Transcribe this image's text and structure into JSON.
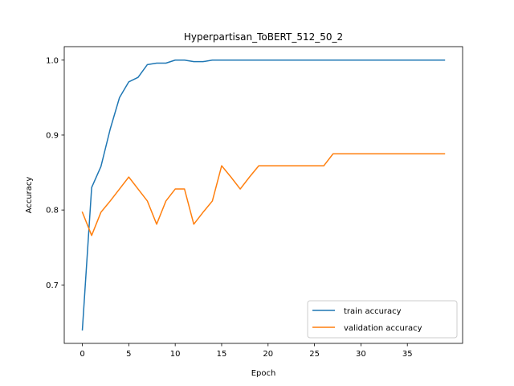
{
  "chart_data": {
    "type": "line",
    "title": "Hyperpartisan_ToBERT_512_50_2",
    "xlabel": "Epoch",
    "ylabel": "Accuracy",
    "xlim": [
      -1.95,
      40.95
    ],
    "ylim": [
      0.622,
      1.018
    ],
    "xticks": [
      0,
      5,
      10,
      15,
      20,
      25,
      30,
      35
    ],
    "yticks": [
      0.7,
      0.8,
      0.9,
      1.0
    ],
    "ytick_labels": [
      "0.7",
      "0.8",
      "0.9",
      "1.0"
    ],
    "grid": false,
    "legend_position": "lower right",
    "x": [
      0,
      1,
      2,
      3,
      4,
      5,
      6,
      7,
      8,
      9,
      10,
      11,
      12,
      13,
      14,
      15,
      16,
      17,
      18,
      19,
      20,
      21,
      22,
      23,
      24,
      25,
      26,
      27,
      28,
      29,
      30,
      31,
      32,
      33,
      34,
      35,
      36,
      37,
      38,
      39
    ],
    "series": [
      {
        "name": "train accuracy",
        "color": "#1f77b4",
        "values": [
          0.64,
          0.83,
          0.858,
          0.908,
          0.95,
          0.971,
          0.977,
          0.994,
          0.996,
          0.996,
          1.0,
          1.0,
          0.998,
          0.998,
          1.0,
          1.0,
          1.0,
          1.0,
          1.0,
          1.0,
          1.0,
          1.0,
          1.0,
          1.0,
          1.0,
          1.0,
          1.0,
          1.0,
          1.0,
          1.0,
          1.0,
          1.0,
          1.0,
          1.0,
          1.0,
          1.0,
          1.0,
          1.0,
          1.0,
          1.0
        ]
      },
      {
        "name": "validation accuracy",
        "color": "#ff7f0e",
        "values": [
          0.797,
          0.766,
          0.797,
          0.812,
          0.828,
          0.844,
          0.828,
          0.812,
          0.781,
          0.812,
          0.828,
          0.828,
          0.781,
          0.797,
          0.812,
          0.859,
          0.844,
          0.828,
          0.844,
          0.859,
          0.859,
          0.859,
          0.859,
          0.859,
          0.859,
          0.859,
          0.859,
          0.875,
          0.875,
          0.875,
          0.875,
          0.875,
          0.875,
          0.875,
          0.875,
          0.875,
          0.875,
          0.875,
          0.875,
          0.875
        ]
      }
    ]
  }
}
